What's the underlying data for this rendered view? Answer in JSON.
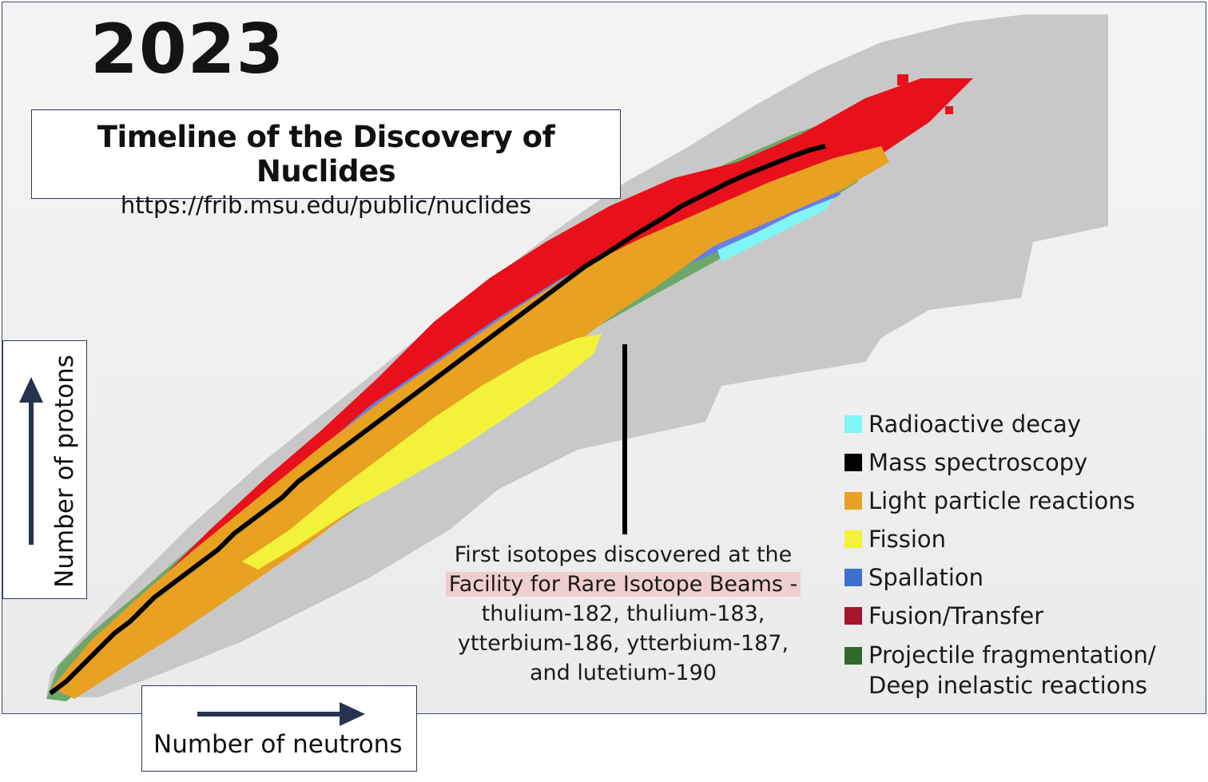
{
  "year": "2023",
  "title": {
    "text": "Timeline of the Discovery of Nuclides",
    "url": "https://frib.msu.edu/public/nuclides"
  },
  "axes": {
    "y_label": "Number of protons",
    "x_label": "Number of neutrons"
  },
  "annotation": {
    "line1": "First isotopes discovered at the",
    "line2": "Facility for Rare Isotope Beams -",
    "line3": "thulium-182, thulium-183,",
    "line4": "ytterbium-186, ytterbium-187,",
    "line5": "and lutetium-190"
  },
  "legend": {
    "items": [
      {
        "label": "Radioactive decay",
        "color": "#7ff5f5"
      },
      {
        "label": "Mass spectroscopy",
        "color": "#000000"
      },
      {
        "label": "Light particle reactions",
        "color": "#e9a122"
      },
      {
        "label": "Fission",
        "color": "#f2f23a"
      },
      {
        "label": "Spallation",
        "color": "#3f6fd0"
      },
      {
        "label": "Fusion/Transfer",
        "color": "#a6152e"
      },
      {
        "label": "Projectile fragmentation/",
        "label2": "Deep inelastic reactions",
        "color": "#2f6a2a"
      }
    ]
  },
  "colors": {
    "unknown": "#c8c8c8",
    "fragmentation": "#6fa76b",
    "fusion": "#e8111b",
    "spallation": "#6a7ee6",
    "light_particle": "#e9a122",
    "fission": "#f2f23a",
    "mass_spec": "#000000",
    "radioactive": "#7ff5f5",
    "arrow": "#26334f"
  }
}
